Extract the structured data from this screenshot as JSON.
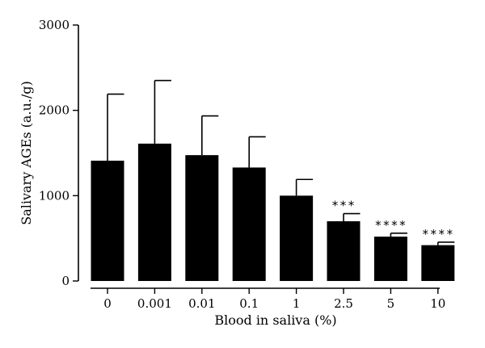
{
  "chart_data": {
    "type": "bar",
    "xlabel": "Blood in saliva (%)",
    "ylabel": "Salivary AGEs (a.u./g)",
    "ylim": [
      0,
      3000
    ],
    "yticks": [
      0,
      1000,
      2000,
      3000
    ],
    "grid": false,
    "categories": [
      "0",
      "0.001",
      "0.01",
      "0.1",
      "1",
      "2.5",
      "5",
      "10"
    ],
    "values": [
      1410,
      1610,
      1475,
      1330,
      1000,
      700,
      520,
      420
    ],
    "error_upper": [
      780,
      740,
      460,
      360,
      190,
      90,
      40,
      35
    ],
    "annotations": [
      "",
      "",
      "",
      "",
      "",
      "***",
      "****",
      "****"
    ],
    "bar_color": "#000000"
  }
}
